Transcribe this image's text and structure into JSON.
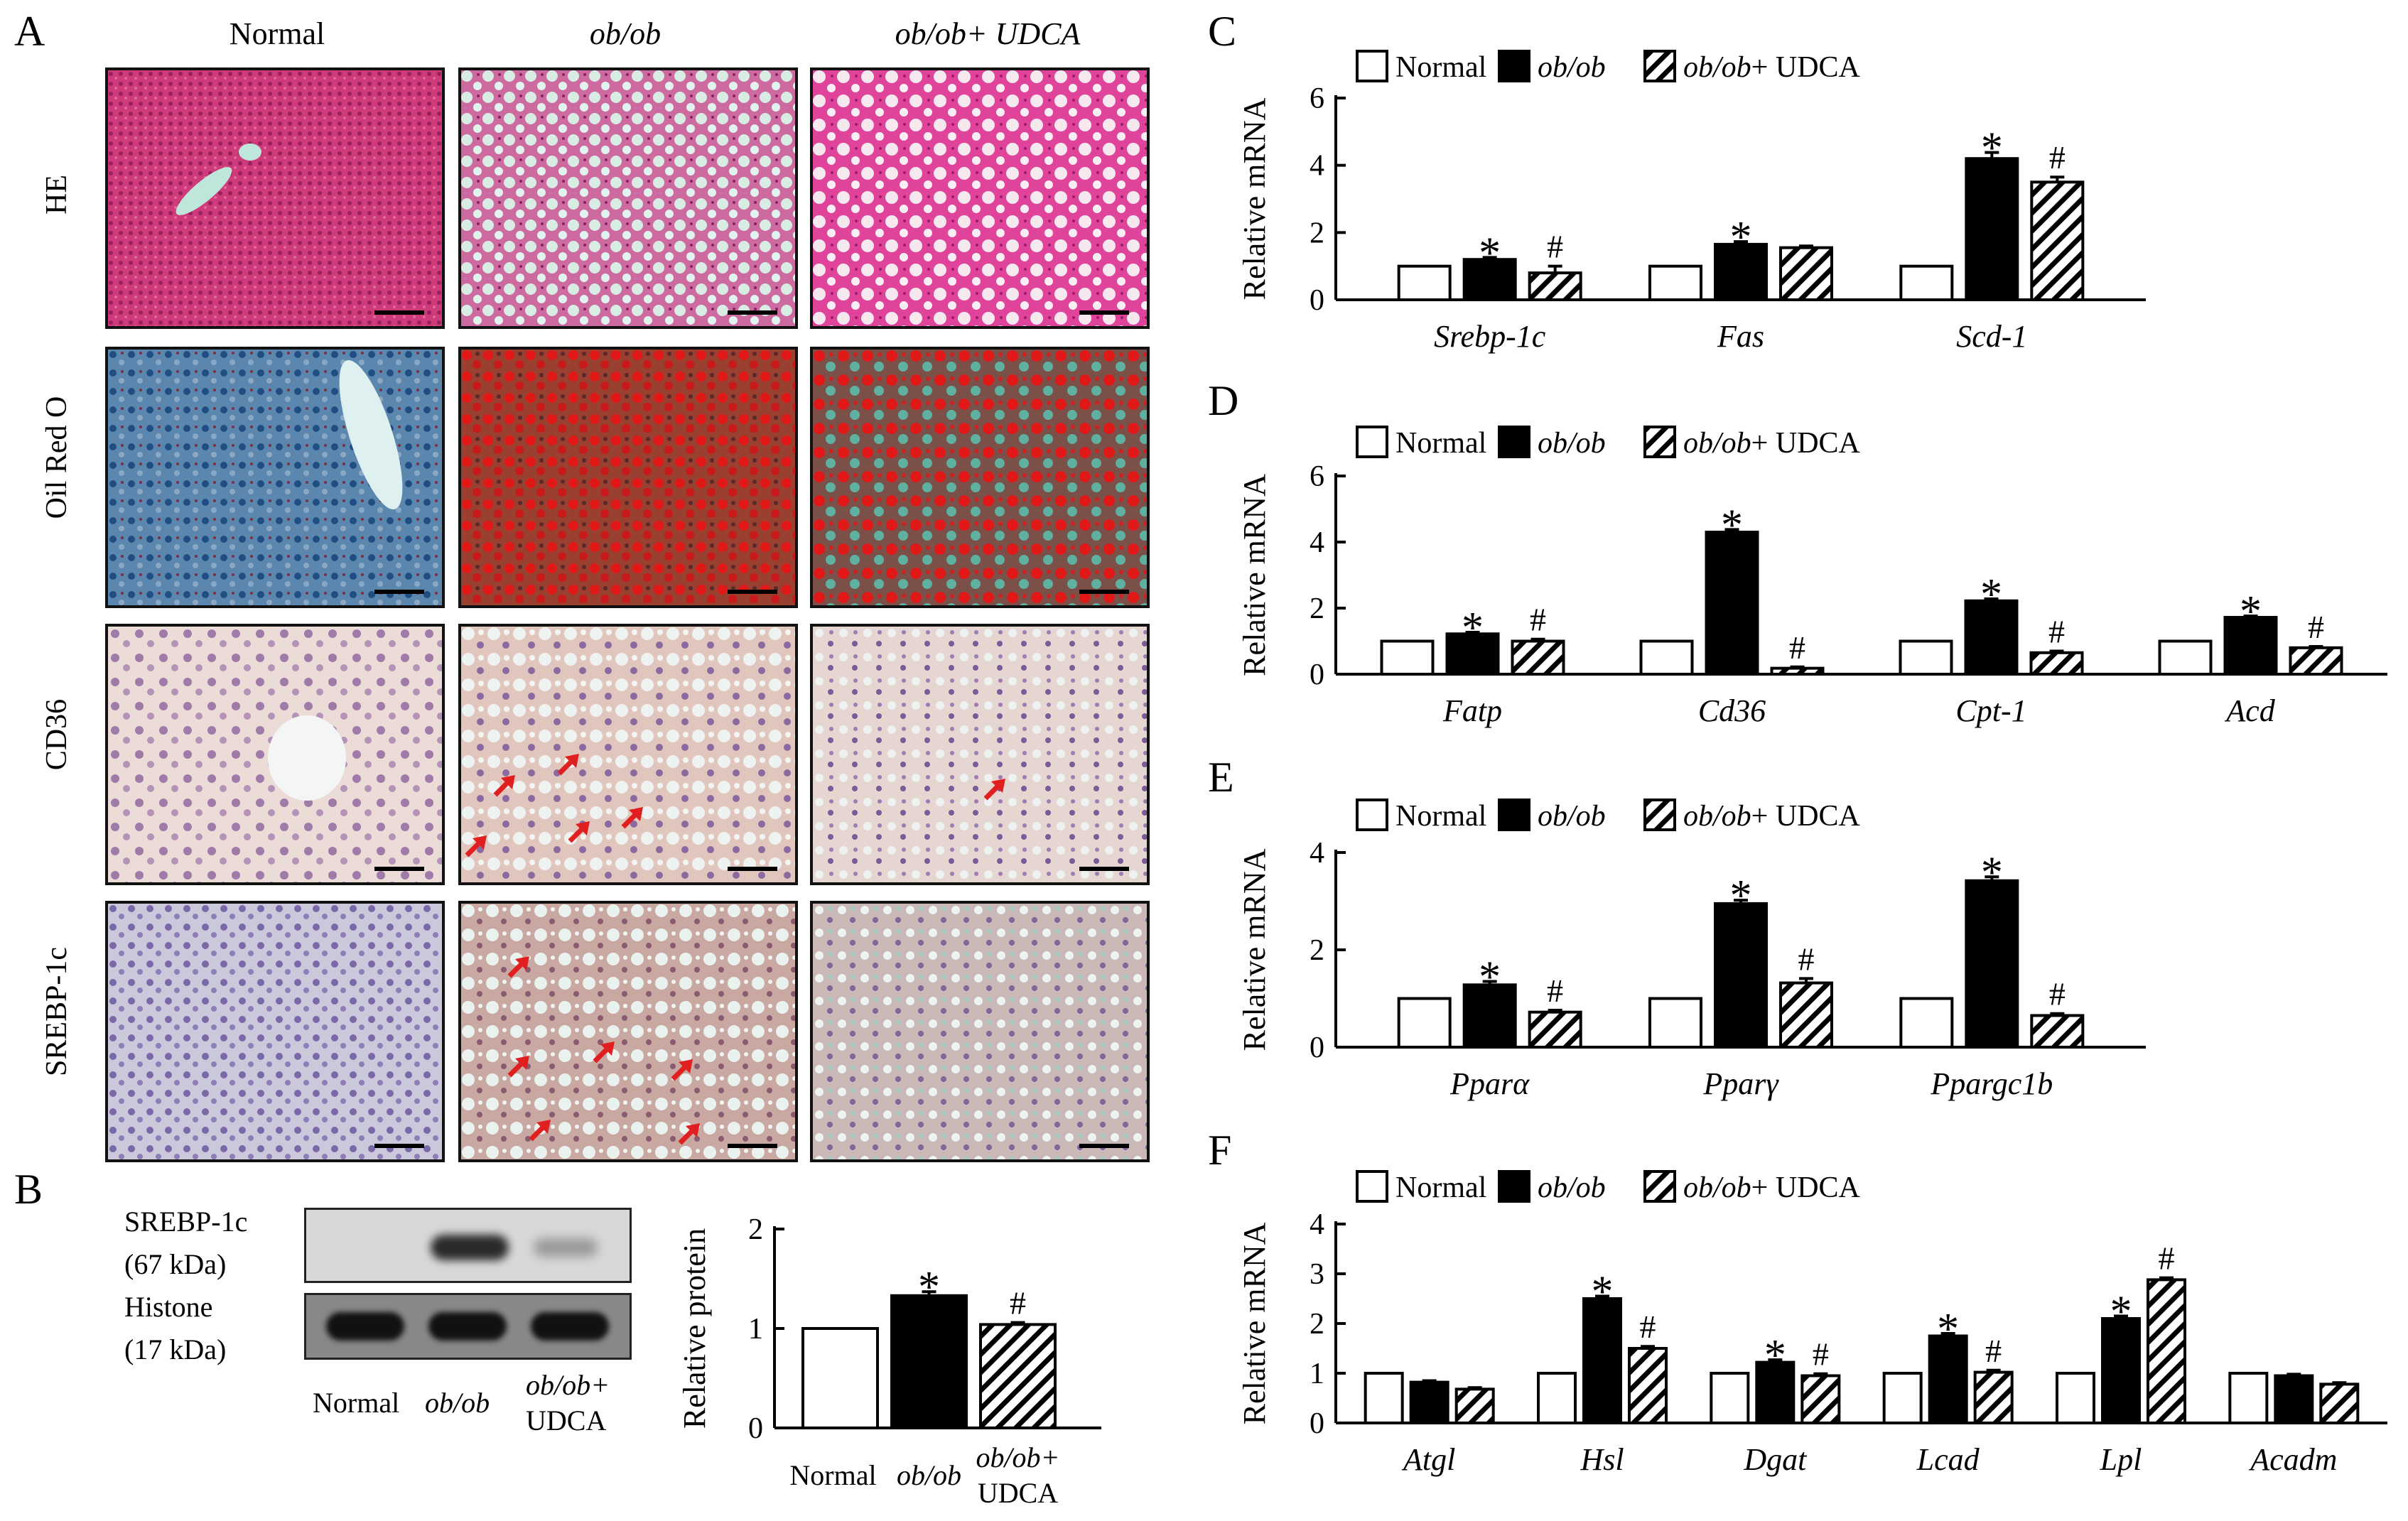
{
  "panel_labels": {
    "A": "A",
    "B": "B",
    "C": "C",
    "D": "D",
    "E": "E",
    "F": "F"
  },
  "micrographs": {
    "columns": [
      "Normal",
      "ob/ob",
      "ob/ob+ UDCA"
    ],
    "rows": [
      "HE",
      "Oil Red O",
      "CD36",
      "SREBP-1c"
    ]
  },
  "western_blot": {
    "bands": [
      "SREBP-1c",
      "(67 kDa)",
      "Histone",
      "(17 kDa)"
    ],
    "lanes": [
      "Normal",
      "ob/ob",
      "ob/ob+",
      "UDCA"
    ]
  },
  "colors": {
    "black_bar": "#000000",
    "white_bar": "#ffffff",
    "he_stain": "#d8417f",
    "oil_blue": "#3f6f97",
    "oil_red": "#d42020",
    "ihc_bg": "#ecdcd6",
    "arrow": "#e02020"
  },
  "chart_data": [
    {
      "id": "B",
      "type": "bar",
      "title": "",
      "ylabel": "Relative protein",
      "xlabel": "",
      "ylim": [
        0,
        2
      ],
      "yticks": [
        "0",
        "1",
        "2"
      ],
      "categories": [
        "Normal",
        "ob/ob",
        "ob/ob+ UDCA"
      ],
      "category_labels": [
        "Normal",
        "ob/ob",
        "ob/ob+",
        "UDCA"
      ],
      "values": [
        1.0,
        1.33,
        1.04
      ],
      "errors": [
        0,
        0.04,
        0.02
      ],
      "annotations": [
        "",
        "*",
        "#"
      ]
    },
    {
      "id": "C",
      "type": "bar",
      "ylabel": "Relative mRNA",
      "ylim": [
        0,
        6
      ],
      "yticks": [
        "0",
        "2",
        "4",
        "6"
      ],
      "legend": [
        "Normal",
        "ob/ob",
        "ob/ob+ UDCA"
      ],
      "categories": [
        "Srebp-1c",
        "Fas",
        "Scd-1"
      ],
      "series": [
        {
          "name": "Normal",
          "values": [
            1.0,
            1.0,
            1.0
          ]
        },
        {
          "name": "ob/ob",
          "values": [
            1.2,
            1.65,
            4.2
          ],
          "errors": [
            0.06,
            0.08,
            0.18
          ],
          "annotations": [
            "*",
            "*",
            "*"
          ]
        },
        {
          "name": "ob/ob+ UDCA",
          "values": [
            0.8,
            1.55,
            3.5
          ],
          "errors": [
            0.2,
            0.05,
            0.15
          ],
          "annotations": [
            "#",
            "",
            "#"
          ]
        }
      ]
    },
    {
      "id": "D",
      "type": "bar",
      "ylabel": "Relative mRNA",
      "ylim": [
        0,
        6
      ],
      "yticks": [
        "0",
        "2",
        "4",
        "6"
      ],
      "legend": [
        "Normal",
        "ob/ob",
        "ob/ob+ UDCA"
      ],
      "categories": [
        "Fatp",
        "Cd36",
        "Cpt-1",
        "Acd"
      ],
      "series": [
        {
          "name": "Normal",
          "values": [
            1.0,
            1.0,
            1.0,
            1.0
          ]
        },
        {
          "name": "ob/ob",
          "values": [
            1.22,
            4.3,
            2.22,
            1.72
          ],
          "errors": [
            0.05,
            0.08,
            0.06,
            0.04
          ],
          "annotations": [
            "*",
            "*",
            "*",
            "*"
          ]
        },
        {
          "name": "ob/ob+ UDCA",
          "values": [
            1.0,
            0.18,
            0.65,
            0.8
          ],
          "errors": [
            0.06,
            0.04,
            0.05,
            0.04
          ],
          "annotations": [
            "#",
            "#",
            "#",
            "#"
          ]
        }
      ]
    },
    {
      "id": "E",
      "type": "bar",
      "ylabel": "Relative mRNA",
      "ylim": [
        0,
        4
      ],
      "yticks": [
        "0",
        "2",
        "4"
      ],
      "legend": [
        "Normal",
        "ob/ob",
        "ob/ob+ UDCA"
      ],
      "categories": [
        "Pparα",
        "Pparγ",
        "Ppargc1b"
      ],
      "series": [
        {
          "name": "Normal",
          "values": [
            1.0,
            1.0,
            1.0
          ]
        },
        {
          "name": "ob/ob",
          "values": [
            1.28,
            2.95,
            3.42
          ],
          "errors": [
            0.07,
            0.07,
            0.08
          ],
          "annotations": [
            "*",
            "*",
            "*"
          ]
        },
        {
          "name": "ob/ob+ UDCA",
          "values": [
            0.72,
            1.32,
            0.65
          ],
          "errors": [
            0.04,
            0.09,
            0.04
          ],
          "annotations": [
            "#",
            "#",
            "#"
          ]
        }
      ]
    },
    {
      "id": "F",
      "type": "bar",
      "ylabel": "Relative mRNA",
      "ylim": [
        0,
        4
      ],
      "yticks": [
        "0",
        "1",
        "2",
        "3",
        "4"
      ],
      "legend": [
        "Normal",
        "ob/ob",
        "ob/ob+ UDCA"
      ],
      "categories": [
        "Atgl",
        "Hsl",
        "Dgat",
        "Lcad",
        "Lpl",
        "Acadm"
      ],
      "series": [
        {
          "name": "Normal",
          "values": [
            1.0,
            1.0,
            1.0,
            1.0,
            1.0,
            1.0
          ]
        },
        {
          "name": "ob/ob",
          "values": [
            0.82,
            2.5,
            1.22,
            1.75,
            2.1,
            0.95
          ],
          "errors": [
            0.03,
            0.05,
            0.05,
            0.05,
            0.05,
            0.03
          ],
          "annotations": [
            "",
            "*",
            "*",
            "*",
            "*",
            ""
          ]
        },
        {
          "name": "ob/ob+ UDCA",
          "values": [
            0.68,
            1.5,
            0.95,
            1.02,
            2.88,
            0.78
          ],
          "errors": [
            0.03,
            0.04,
            0.04,
            0.04,
            0.04,
            0.03
          ],
          "annotations": [
            "",
            "#",
            "#",
            "#",
            "#",
            ""
          ]
        }
      ]
    }
  ]
}
